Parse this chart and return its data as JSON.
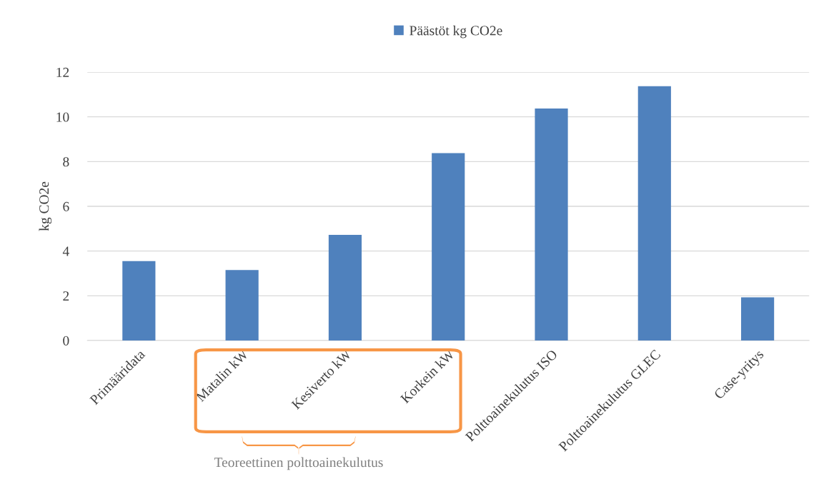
{
  "chart_data": {
    "type": "bar",
    "categories": [
      "Primääridata",
      "Matalin kW",
      "Kesiverto kW",
      "Korkein kW",
      "Polttoainekulutus ISO",
      "Polttoainekulutus GLEC",
      "Case-yritys"
    ],
    "series": [
      {
        "name": "Päästöt kg CO2e",
        "color": "#4f81bd",
        "values": [
          3.55,
          3.15,
          4.72,
          8.38,
          10.37,
          11.37,
          1.93
        ]
      }
    ],
    "ylabel": "kg CO2e",
    "ylim": [
      0,
      12
    ],
    "yticks": [
      0,
      2,
      4,
      6,
      8,
      10,
      12
    ],
    "grid": "y",
    "legend": "top",
    "annotations": [
      "Teoreettinen polttoainekulutus"
    ]
  }
}
